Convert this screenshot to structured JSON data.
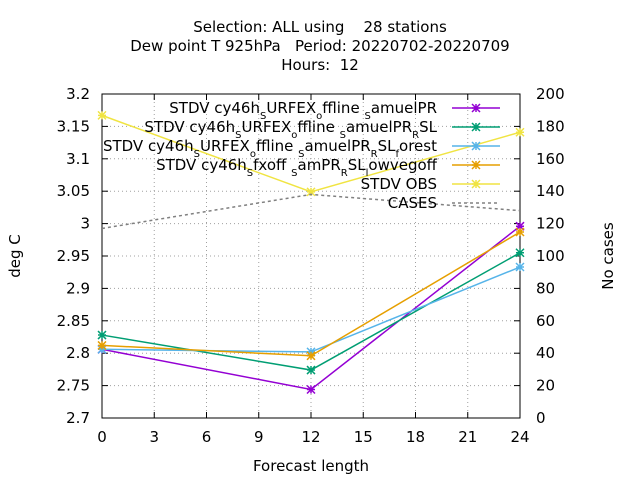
{
  "chart_data": {
    "type": "line",
    "title_lines": [
      "Selection: ALL using    28 stations",
      "Dew point T 925hPa   Period: 20220702-20220709",
      "Hours:  12"
    ],
    "xlabel": "Forecast length",
    "ylabel": "deg C",
    "y2label": "No cases",
    "x_ticks": [
      0,
      3,
      6,
      9,
      12,
      15,
      18,
      21,
      24
    ],
    "y_ticks": [
      "2.7",
      "2.75",
      "2.8",
      "2.85",
      "2.9",
      "2.95",
      "3",
      "3.05",
      "3.1",
      "3.15",
      "3.2"
    ],
    "y2_ticks": [
      0,
      20,
      40,
      60,
      80,
      100,
      120,
      140,
      160,
      180,
      200
    ],
    "xlim": [
      0,
      24
    ],
    "ylim": [
      2.7,
      3.2
    ],
    "y2lim": [
      0,
      200
    ],
    "grid": true,
    "legend_position": "top-right",
    "x": [
      0,
      12,
      24
    ],
    "series": [
      {
        "name_parts": [
          [
            "STDV cy46h",
            ""
          ],
          [
            "S",
            "sub"
          ],
          [
            "URFEX",
            ""
          ],
          [
            "o",
            "sub"
          ],
          [
            "ffline ",
            ""
          ],
          [
            "S",
            "sub"
          ],
          [
            "amuelPR",
            ""
          ]
        ],
        "color": "#9400d3",
        "values": [
          2.806,
          2.744,
          2.996
        ],
        "axis": "y"
      },
      {
        "name_parts": [
          [
            "STDV cy46h",
            ""
          ],
          [
            "S",
            "sub"
          ],
          [
            "URFEX",
            ""
          ],
          [
            "o",
            "sub"
          ],
          [
            "ffline ",
            ""
          ],
          [
            "S",
            "sub"
          ],
          [
            "amuelPR",
            ""
          ],
          [
            "R",
            "sub"
          ],
          [
            "SL",
            ""
          ]
        ],
        "color": "#009e73",
        "values": [
          2.828,
          2.774,
          2.955
        ],
        "axis": "y"
      },
      {
        "name_parts": [
          [
            "STDV cy46h",
            ""
          ],
          [
            "S",
            "sub"
          ],
          [
            "URFEX",
            ""
          ],
          [
            "o",
            "sub"
          ],
          [
            "ffline ",
            ""
          ],
          [
            "S",
            "sub"
          ],
          [
            "amuelPR",
            ""
          ],
          [
            "R",
            "sub"
          ],
          [
            "SL",
            ""
          ],
          [
            "f",
            "sub"
          ],
          [
            "orest",
            ""
          ]
        ],
        "color": "#56b4e9",
        "values": [
          2.806,
          2.802,
          2.933
        ],
        "axis": "y"
      },
      {
        "name_parts": [
          [
            "STDV cy46h",
            ""
          ],
          [
            "S",
            "sub"
          ],
          [
            "fxoff ",
            ""
          ],
          [
            "S",
            "sub"
          ],
          [
            "amPR",
            ""
          ],
          [
            "R",
            "sub"
          ],
          [
            "SL",
            ""
          ],
          [
            "l",
            "sub"
          ],
          [
            "owvegoff",
            ""
          ]
        ],
        "color": "#e69f00",
        "values": [
          2.812,
          2.796,
          2.987
        ],
        "axis": "y"
      },
      {
        "name_parts": [
          [
            "STDV OBS",
            ""
          ]
        ],
        "color": "#f0e442",
        "values": [
          3.167,
          3.049,
          3.141
        ],
        "axis": "y"
      },
      {
        "name_parts": [
          [
            "CASES",
            ""
          ]
        ],
        "color": "#808080",
        "values": [
          117,
          138,
          128
        ],
        "axis": "y2",
        "dashed": true
      }
    ]
  }
}
